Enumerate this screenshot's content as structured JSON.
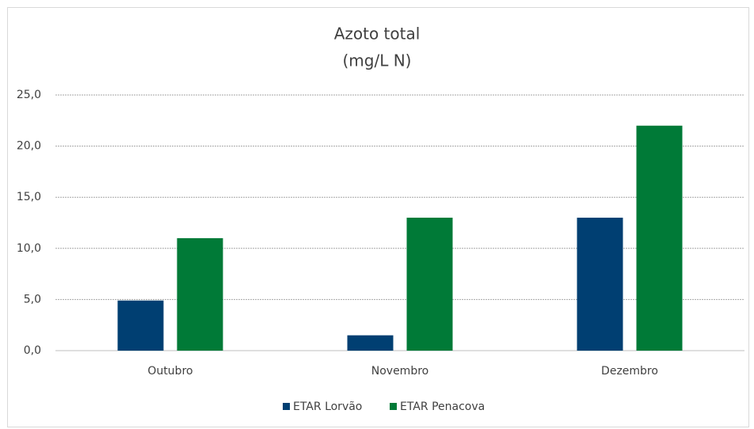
{
  "chart_data": {
    "type": "bar",
    "title": "Azoto total",
    "subtitle": "(mg/L N)",
    "categories": [
      "Outubro",
      "Novembro",
      "Dezembro"
    ],
    "series": [
      {
        "name": "ETAR Lorvão",
        "color": "#003f72",
        "values": [
          4.9,
          1.5,
          13.0
        ]
      },
      {
        "name": "ETAR Penacova",
        "color": "#007a37",
        "values": [
          11.0,
          13.0,
          22.0
        ]
      }
    ],
    "ylim": [
      0,
      25
    ],
    "yticks": [
      {
        "value": 0,
        "label": "0,0"
      },
      {
        "value": 5,
        "label": "5,0"
      },
      {
        "value": 10,
        "label": "10,0"
      },
      {
        "value": 15,
        "label": "15,0"
      },
      {
        "value": 20,
        "label": "20,0"
      },
      {
        "value": 25,
        "label": "25,0"
      }
    ],
    "grid": true,
    "legend": "bottom"
  }
}
